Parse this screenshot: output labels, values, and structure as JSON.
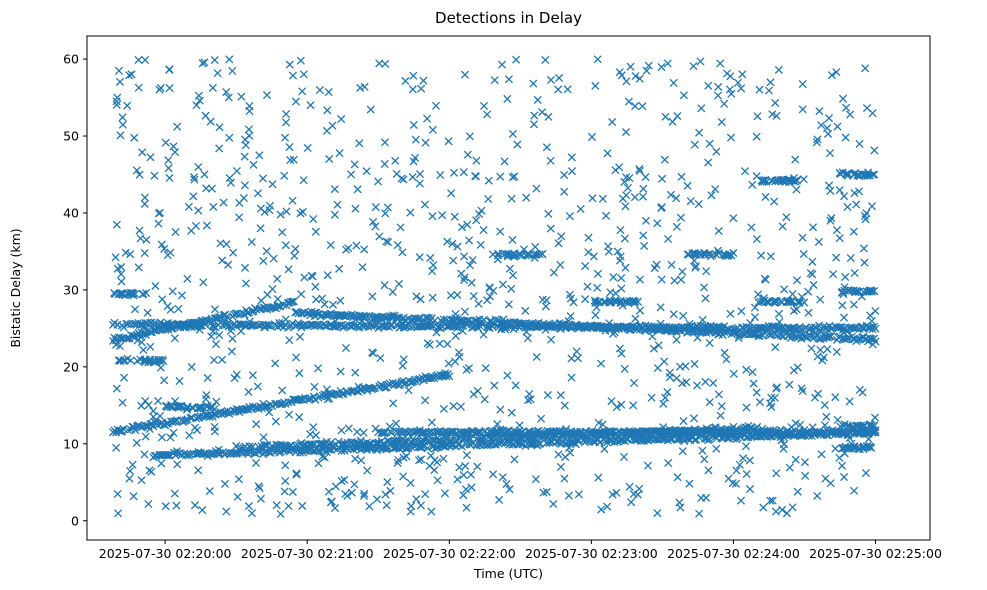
{
  "chart_data": {
    "type": "scatter",
    "title": "Detections in Delay",
    "xlabel": "Time (UTC)",
    "ylabel": "Bistatic Delay (km)",
    "marker": "x",
    "color": "#1f77b4",
    "xlim_seconds_after_02_20_00": [
      -33,
      323
    ],
    "ylim": [
      -2.5,
      63
    ],
    "x_ticks": [
      {
        "t": 0,
        "label": "2025-07-30 02:20:00"
      },
      {
        "t": 60,
        "label": "2025-07-30 02:21:00"
      },
      {
        "t": 120,
        "label": "2025-07-30 02:22:00"
      },
      {
        "t": 180,
        "label": "2025-07-30 02:23:00"
      },
      {
        "t": 240,
        "label": "2025-07-30 02:24:00"
      },
      {
        "t": 300,
        "label": "2025-07-30 02:25:00"
      }
    ],
    "y_ticks": [
      0,
      10,
      20,
      30,
      40,
      50,
      60
    ],
    "data_time_range_seconds": [
      -22,
      300
    ],
    "tracks": [
      {
        "name": "track-a",
        "t": [
          -22,
          55
        ],
        "y": [
          23.5,
          28.5
        ]
      },
      {
        "name": "track-b",
        "t": [
          55,
          300
        ],
        "y": [
          27.0,
          23.5
        ]
      },
      {
        "name": "track-c",
        "t": [
          -22,
          120
        ],
        "y": [
          11.5,
          19.0
        ]
      },
      {
        "name": "track-d",
        "t": [
          -5,
          300
        ],
        "y": [
          8.5,
          11.5
        ]
      },
      {
        "name": "track-e",
        "t": [
          30,
          250
        ],
        "y": [
          9.5,
          12.0
        ]
      },
      {
        "name": "track-f",
        "t": [
          -22,
          300
        ],
        "y": [
          25.5,
          25.0
        ]
      },
      {
        "name": "track-g",
        "t": [
          90,
          300
        ],
        "y": [
          11.5,
          11.5
        ]
      }
    ],
    "clusters": [
      {
        "t": [
          -22,
          -8
        ],
        "y": 29.5
      },
      {
        "t": [
          -20,
          0
        ],
        "y": 20.8
      },
      {
        "t": [
          140,
          160
        ],
        "y": 34.6
      },
      {
        "t": [
          220,
          240
        ],
        "y": 34.6
      },
      {
        "t": [
          250,
          270
        ],
        "y": 44.2
      },
      {
        "t": [
          285,
          300
        ],
        "y": 45.0
      },
      {
        "t": [
          180,
          200
        ],
        "y": 28.5
      },
      {
        "t": [
          250,
          270
        ],
        "y": 28.5
      },
      {
        "t": [
          285,
          300
        ],
        "y": 29.8
      },
      {
        "t": [
          285,
          300
        ],
        "y": 12.3
      },
      {
        "t": [
          285,
          300
        ],
        "y": 9.5
      },
      {
        "t": [
          0,
          20
        ],
        "y": 14.8
      }
    ],
    "noise_points_approx": 1100,
    "noise_y_range": [
      0,
      60
    ]
  }
}
